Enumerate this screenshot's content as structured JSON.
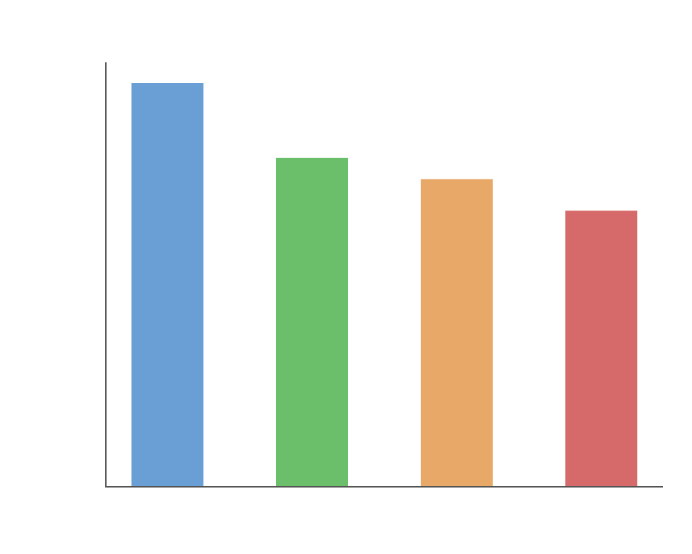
{
  "chart_data": {
    "type": "bar",
    "title": "",
    "xlabel": "",
    "ylabel": "",
    "categories": [
      "",
      "",
      "",
      ""
    ],
    "values": [
      100,
      81.5,
      76.2,
      68.4
    ],
    "colors": [
      "#6a9fd6",
      "#6bbf6b",
      "#e8a868",
      "#d66a6a"
    ],
    "ylim": [
      0,
      105
    ],
    "grid": false,
    "legend": "none"
  }
}
